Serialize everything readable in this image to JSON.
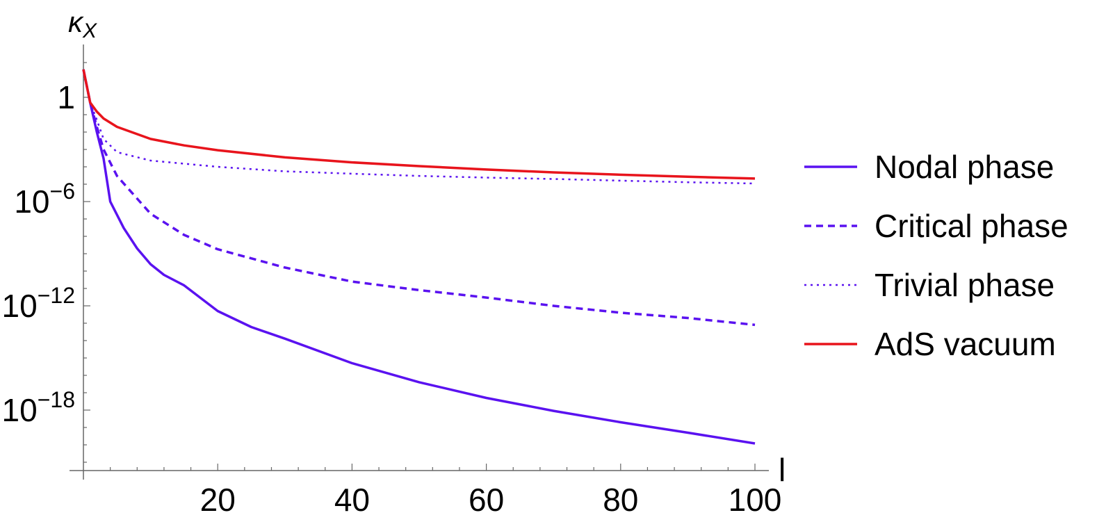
{
  "chart_data": {
    "type": "line",
    "xlabel": "l",
    "ylabel": "κX",
    "y_scale": "log",
    "xlim": [
      0,
      100
    ],
    "ylim": [
      1e-22,
      1000.0
    ],
    "x_ticks": [
      {
        "value": 20,
        "label": "20"
      },
      {
        "value": 40,
        "label": "40"
      },
      {
        "value": 60,
        "label": "60"
      },
      {
        "value": 80,
        "label": "80"
      },
      {
        "value": 100,
        "label": "100"
      }
    ],
    "y_ticks": [
      {
        "value": 1,
        "label": "1",
        "exp": ""
      },
      {
        "value": 1e-06,
        "label": "10",
        "exp": "−6"
      },
      {
        "value": 1e-12,
        "label": "10",
        "exp": "−12"
      },
      {
        "value": 1e-18,
        "label": "10",
        "exp": "−18"
      }
    ],
    "legend_position": "right",
    "series": [
      {
        "name": "Nodal phase",
        "color": "#5a12f0",
        "dash": "solid",
        "x": [
          0,
          1,
          2,
          3,
          4,
          6,
          8,
          10,
          12,
          15,
          20,
          25,
          30,
          40,
          50,
          60,
          70,
          80,
          90,
          100
        ],
        "y": [
          40,
          0.5,
          0.01,
          0.0003,
          1e-06,
          3e-08,
          2e-09,
          2.5e-10,
          6e-11,
          1.5e-11,
          5e-13,
          6e-14,
          1.3e-14,
          5e-16,
          4e-17,
          5e-18,
          9e-19,
          2e-19,
          5e-20,
          1.2e-20
        ]
      },
      {
        "name": "Critical phase",
        "color": "#5a12f0",
        "dash": "dashed",
        "x": [
          0,
          1,
          2,
          3,
          5,
          10,
          15,
          20,
          30,
          40,
          50,
          60,
          70,
          80,
          90,
          100
        ],
        "y": [
          40,
          0.5,
          0.02,
          0.001,
          3e-05,
          2e-07,
          1.2e-08,
          1.8e-09,
          1.6e-10,
          2.5e-11,
          8e-12,
          3e-12,
          1e-12,
          4e-13,
          2e-13,
          8e-14
        ]
      },
      {
        "name": "Trivial phase",
        "color": "#5a12f0",
        "dash": "dotted",
        "x": [
          0,
          1,
          2,
          3,
          5,
          10,
          20,
          30,
          40,
          50,
          60,
          70,
          80,
          90,
          100
        ],
        "y": [
          40,
          0.5,
          0.05,
          0.004,
          0.0007,
          0.00023,
          0.0001,
          5.5e-05,
          4e-05,
          3e-05,
          2.4e-05,
          2e-05,
          1.6e-05,
          1.3e-05,
          1.1e-05
        ]
      },
      {
        "name": "AdS vacuum",
        "color": "#e8141c",
        "dash": "solid",
        "x": [
          0,
          1,
          2,
          3,
          5,
          10,
          15,
          20,
          30,
          40,
          50,
          60,
          70,
          80,
          90,
          100
        ],
        "y": [
          40,
          0.5,
          0.15,
          0.06,
          0.02,
          0.004,
          0.0017,
          0.0009,
          0.00035,
          0.00018,
          0.00011,
          7e-05,
          4.8e-05,
          3.5e-05,
          2.7e-05,
          2.1e-05
        ]
      }
    ]
  }
}
